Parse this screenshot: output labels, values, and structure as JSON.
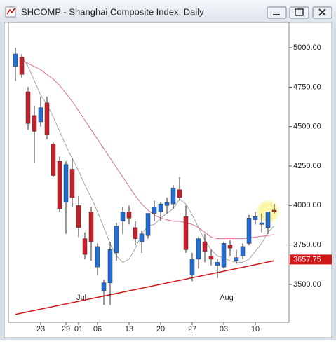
{
  "window": {
    "title": "SHCOMP - Shanghai Composite Index, Daily"
  },
  "chart_data": {
    "type": "candlestick",
    "categories": [
      null,
      null,
      null,
      null,
      "23",
      null,
      null,
      null,
      "29",
      null,
      "01",
      null,
      null,
      "06",
      null,
      null,
      null,
      null,
      "13",
      null,
      null,
      null,
      null,
      "20",
      null,
      null,
      null,
      null,
      "27",
      null,
      null,
      null,
      null,
      "03",
      null,
      null,
      null,
      null,
      "10",
      null,
      null,
      null
    ],
    "months": [
      {
        "value": 10,
        "label": "Jul"
      },
      {
        "value": 33,
        "label": "Aug"
      }
    ],
    "open": [
      4880,
      4940,
      4720,
      4570,
      4530,
      4650,
      4390,
      4280,
      4020,
      4230,
      4000,
      3790,
      3960,
      3610,
      3460,
      3510,
      3700,
      3900,
      3960,
      3860,
      3770,
      3810,
      3950,
      3960,
      4000,
      4010,
      4100,
      3930,
      3560,
      3660,
      3770,
      3680,
      3620,
      3610,
      3750,
      3650,
      3680,
      3760,
      3910,
      3880,
      3860,
      3970
    ],
    "high": [
      5000,
      4960,
      4750,
      4630,
      4690,
      4690,
      4400,
      4310,
      4280,
      4300,
      4060,
      3830,
      3990,
      3760,
      3530,
      3770,
      3890,
      3990,
      4000,
      3900,
      3840,
      3950,
      4030,
      4020,
      4050,
      4130,
      4180,
      4000,
      3700,
      3800,
      3820,
      3720,
      3660,
      3770,
      3780,
      3720,
      3760,
      3940,
      3960,
      3950,
      3960,
      4010
    ],
    "low": [
      4790,
      4810,
      4480,
      4270,
      4500,
      4420,
      4180,
      3960,
      3820,
      3990,
      3800,
      3660,
      3650,
      3560,
      3370,
      3370,
      3650,
      3820,
      3880,
      3750,
      3700,
      3790,
      3900,
      3900,
      3950,
      3980,
      4030,
      3700,
      3520,
      3600,
      3640,
      3620,
      3540,
      3600,
      3680,
      3630,
      3660,
      3750,
      3880,
      3830,
      3820,
      3950
    ],
    "close": [
      4960,
      4830,
      4520,
      4470,
      4620,
      4450,
      4190,
      3980,
      4260,
      4050,
      3860,
      3690,
      3770,
      3740,
      3510,
      3720,
      3870,
      3960,
      3920,
      3790,
      3820,
      3950,
      3990,
      4010,
      4020,
      4110,
      4050,
      3720,
      3660,
      3790,
      3710,
      3660,
      3640,
      3760,
      3730,
      3670,
      3740,
      3920,
      3930,
      3890,
      3960,
      3960
    ],
    "up_color": "#1f6fd6",
    "down_color": "#c8202a",
    "series": [
      {
        "color": "#a0a8a0",
        "values": [
          null,
          4950,
          4880,
          4790,
          4700,
          4640,
          4560,
          4470,
          4380,
          4300,
          4220,
          4130,
          4050,
          3960,
          3860,
          3760,
          3680,
          3640,
          3660,
          3730,
          3820,
          3870,
          3880,
          3920,
          3950,
          3980,
          4040,
          4010,
          3940,
          3860,
          3780,
          3720,
          3680,
          3670,
          3650,
          3640,
          3640,
          3660,
          3710,
          3760,
          3830,
          3870
        ]
      },
      {
        "color": "#e06a9a",
        "values": [
          null,
          4920,
          4900,
          4880,
          4860,
          4830,
          4800,
          4760,
          4710,
          4660,
          4600,
          4540,
          4480,
          4420,
          4360,
          4300,
          4240,
          4180,
          4120,
          4060,
          4010,
          3970,
          3940,
          3920,
          3910,
          3900,
          3900,
          3890,
          3880,
          3860,
          3830,
          3800,
          3790,
          3790,
          3790,
          3790,
          3790,
          3795,
          3800,
          3805,
          3810,
          3815
        ]
      }
    ],
    "trendline": {
      "color": "#d01818",
      "x": [
        0,
        41
      ],
      "values": [
        3310,
        3650
      ]
    },
    "current_price": {
      "value": 3657.75,
      "label": "3657.75"
    },
    "ylim": [
      3260,
      5160
    ],
    "yticks": [
      {
        "value": 3500,
        "label": "3500.00"
      },
      {
        "value": 3750,
        "label": "3750.00"
      },
      {
        "value": 4000,
        "label": "4000.00"
      },
      {
        "value": 4250,
        "label": "4250.00"
      },
      {
        "value": 4500,
        "label": "4500.00"
      },
      {
        "value": 4750,
        "label": "4750.00"
      },
      {
        "value": 5000,
        "label": "5000.00"
      }
    ]
  }
}
